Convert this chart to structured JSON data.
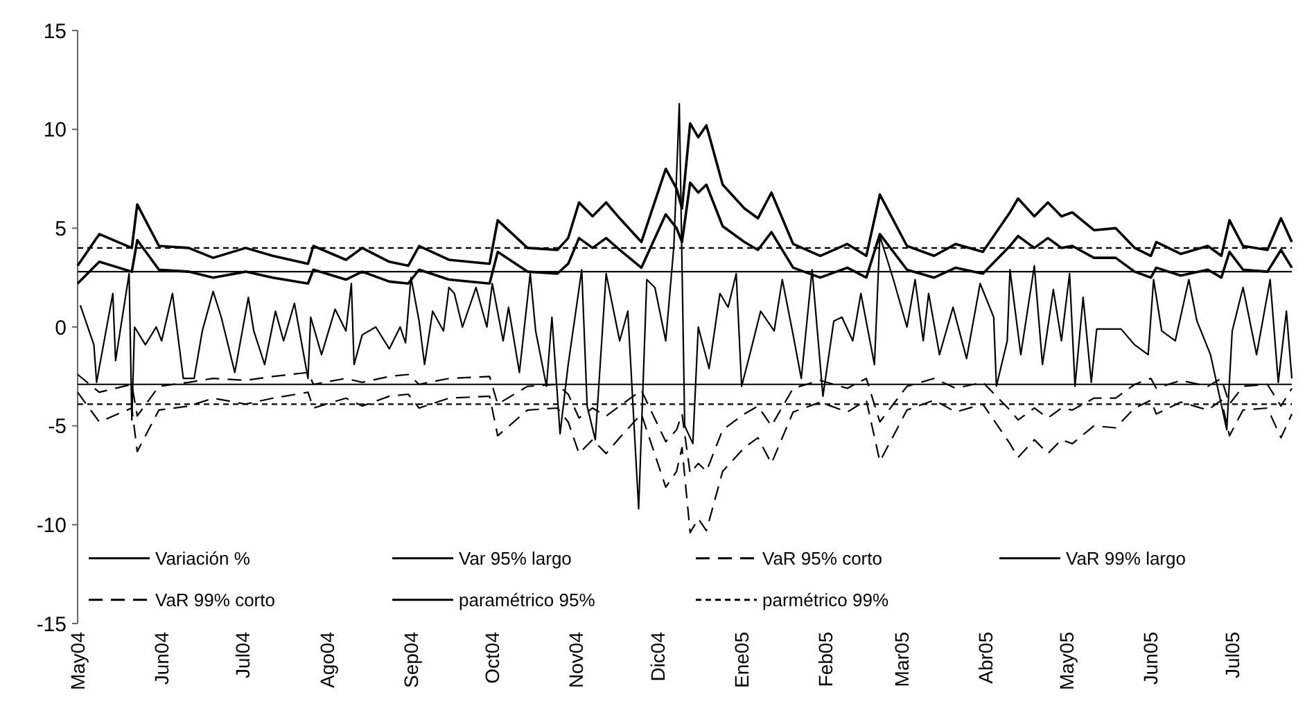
{
  "chart_data": {
    "type": "line",
    "x": [
      "2004-05-01",
      "2004-05-09",
      "2004-05-21",
      "2004-05-23",
      "2004-05-31",
      "2004-06-11",
      "2004-06-20",
      "2004-07-02",
      "2004-07-12",
      "2004-07-25",
      "2004-07-27",
      "2004-08-08",
      "2004-08-14",
      "2004-08-24",
      "2004-08-31",
      "2004-09-04",
      "2004-09-15",
      "2004-09-30",
      "2004-10-03",
      "2004-10-14",
      "2004-10-25",
      "2004-10-29",
      "2004-11-02",
      "2004-11-07",
      "2004-11-12",
      "2004-11-17",
      "2004-11-25",
      "2004-12-04",
      "2004-12-08",
      "2004-12-10",
      "2004-12-13",
      "2004-12-16",
      "2004-12-19",
      "2004-12-25",
      "2005-01-02",
      "2005-01-07",
      "2005-01-12",
      "2005-01-20",
      "2005-01-30",
      "2005-02-09",
      "2005-02-16",
      "2005-02-21",
      "2005-03-03",
      "2005-03-13",
      "2005-03-21",
      "2005-03-31",
      "2005-04-10",
      "2005-04-13",
      "2005-04-19",
      "2005-04-24",
      "2005-04-29",
      "2005-05-03",
      "2005-05-11",
      "2005-05-19",
      "2005-05-26",
      "2005-06-01",
      "2005-06-03",
      "2005-06-12",
      "2005-06-22",
      "2005-06-27",
      "2005-06-30",
      "2005-07-05",
      "2005-07-14",
      "2005-07-19",
      "2005-07-23"
    ],
    "series": [
      {
        "name": "Variación %",
        "color": "#000000",
        "line_style": "solid",
        "x": [
          "2004-05-02",
          "2004-05-07",
          "2004-05-08",
          "2004-05-14",
          "2004-05-15",
          "2004-05-20",
          "2004-05-21",
          "2004-05-22",
          "2004-05-26",
          "2004-05-30",
          "2004-06-01",
          "2004-06-05",
          "2004-06-09",
          "2004-06-13",
          "2004-06-16",
          "2004-06-20",
          "2004-06-23",
          "2004-06-28",
          "2004-07-03",
          "2004-07-05",
          "2004-07-09",
          "2004-07-13",
          "2004-07-16",
          "2004-07-20",
          "2004-07-25",
          "2004-07-26",
          "2004-07-30",
          "2004-08-04",
          "2004-08-08",
          "2004-08-10",
          "2004-08-11",
          "2004-08-14",
          "2004-08-19",
          "2004-08-24",
          "2004-08-28",
          "2004-08-30",
          "2004-09-01",
          "2004-09-04",
          "2004-09-06",
          "2004-09-09",
          "2004-09-13",
          "2004-09-15",
          "2004-09-17",
          "2004-09-20",
          "2004-09-25",
          "2004-09-29",
          "2004-10-01",
          "2004-10-05",
          "2004-10-07",
          "2004-10-11",
          "2004-10-15",
          "2004-10-17",
          "2004-10-21",
          "2004-10-23",
          "2004-10-26",
          "2004-10-29",
          "2004-11-03",
          "2004-11-05",
          "2004-11-08",
          "2004-11-12",
          "2004-11-17",
          "2004-11-20",
          "2004-11-24",
          "2004-11-27",
          "2004-11-30",
          "2004-12-04",
          "2004-12-07",
          "2004-12-09",
          "2004-12-11",
          "2004-12-14",
          "2004-12-16",
          "2004-12-20",
          "2004-12-24",
          "2004-12-27",
          "2004-12-30",
          "2005-01-01",
          "2005-01-04",
          "2005-01-08",
          "2005-01-13",
          "2005-01-16",
          "2005-01-20",
          "2005-01-23",
          "2005-01-27",
          "2005-01-31",
          "2005-02-04",
          "2005-02-07",
          "2005-02-11",
          "2005-02-14",
          "2005-02-19",
          "2005-02-21",
          "2005-02-26",
          "2005-03-03",
          "2005-03-06",
          "2005-03-09",
          "2005-03-11",
          "2005-03-15",
          "2005-03-20",
          "2005-03-25",
          "2005-03-30",
          "2005-04-04",
          "2005-04-05",
          "2005-04-09",
          "2005-04-10",
          "2005-04-14",
          "2005-04-19",
          "2005-04-22",
          "2005-04-26",
          "2005-04-29",
          "2005-05-02",
          "2005-05-04",
          "2005-05-07",
          "2005-05-10",
          "2005-05-12",
          "2005-05-21",
          "2005-05-26",
          "2005-05-31",
          "2005-06-02",
          "2005-06-05",
          "2005-06-10",
          "2005-06-15",
          "2005-06-18",
          "2005-06-23",
          "2005-06-29",
          "2005-07-01",
          "2005-07-05",
          "2005-07-10",
          "2005-07-15",
          "2005-07-18",
          "2005-07-21",
          "2005-07-23"
        ],
        "values": [
          1.1,
          -0.9,
          -2.8,
          1.7,
          -1.7,
          2.7,
          -4.7,
          0,
          -0.9,
          0,
          -0.7,
          1.7,
          -2.6,
          -2.6,
          -0.2,
          1.8,
          0.5,
          -2.3,
          1.5,
          -0.2,
          -1.9,
          0.8,
          -0.7,
          1.2,
          -2.6,
          0.5,
          -1.4,
          0.9,
          -0.2,
          2.2,
          -1.9,
          -0.4,
          0,
          -1.1,
          0,
          -0.8,
          2.5,
          0.3,
          -1.9,
          0.8,
          -0.2,
          2.0,
          1.7,
          0,
          2.0,
          0,
          2.2,
          -0.7,
          1.0,
          -2.3,
          2.7,
          -0.2,
          -3.0,
          0.5,
          -5.4,
          -1.9,
          2.9,
          -4.0,
          -5.7,
          2.7,
          -0.7,
          0.8,
          -9.2,
          2.4,
          2.0,
          -0.7,
          4.1,
          11.3,
          -5.0,
          -5.9,
          0,
          -2.1,
          1.7,
          1.0,
          2.7,
          -3.0,
          -1.4,
          0.8,
          -0.2,
          2.4,
          -0.4,
          -2.6,
          2.9,
          -3.5,
          0.3,
          0.5,
          -0.7,
          1.7,
          -1.9,
          4.6,
          2.4,
          0,
          2.4,
          -0.7,
          1.7,
          -1.4,
          1.0,
          -1.6,
          2.2,
          0.5,
          -3.0,
          -0.7,
          2.9,
          -1.4,
          3.1,
          -1.9,
          1.9,
          -0.7,
          2.7,
          -3.0,
          1.5,
          -2.8,
          -0.1,
          -0.1,
          -0.9,
          -1.4,
          2.4,
          -0.2,
          -0.7,
          2.4,
          0.3,
          -1.4,
          -5.2,
          -0.2,
          2.0,
          -1.4,
          2.4,
          -2.8,
          0.8,
          -2.6
        ]
      },
      {
        "name": "Var 95% largo",
        "color": "#000000",
        "line_style": "solid",
        "values": [
          2.2,
          3.3,
          2.8,
          4.4,
          2.9,
          2.8,
          2.5,
          2.8,
          2.5,
          2.2,
          2.9,
          2.4,
          2.8,
          2.3,
          2.2,
          2.9,
          2.4,
          2.2,
          3.8,
          2.8,
          2.7,
          3.2,
          4.5,
          4.0,
          4.5,
          3.9,
          3.0,
          5.7,
          5.0,
          4.3,
          7.3,
          6.8,
          7.2,
          5.1,
          4.3,
          3.9,
          4.8,
          3.0,
          2.5,
          3.0,
          2.5,
          4.7,
          2.9,
          2.5,
          3.0,
          2.7,
          4.1,
          4.6,
          4.0,
          4.5,
          4.0,
          4.1,
          3.5,
          3.5,
          2.8,
          2.5,
          3.0,
          2.6,
          2.9,
          2.5,
          3.8,
          2.9,
          2.8,
          3.9,
          3.0
        ]
      },
      {
        "name": "VaR 95% corto",
        "color": "#000000",
        "line_style": "dashed",
        "values": [
          -2.4,
          -3.3,
          -2.9,
          -4.5,
          -3.0,
          -2.8,
          -2.6,
          -2.7,
          -2.5,
          -2.3,
          -2.9,
          -2.6,
          -2.8,
          -2.5,
          -2.4,
          -2.9,
          -2.6,
          -2.5,
          -3.9,
          -3.0,
          -2.9,
          -3.4,
          -4.6,
          -4.1,
          -4.5,
          -4.0,
          -3.2,
          -5.8,
          -5.2,
          -4.4,
          -7.4,
          -6.9,
          -7.3,
          -5.2,
          -4.4,
          -4.0,
          -5.0,
          -3.1,
          -2.7,
          -3.1,
          -2.6,
          -4.8,
          -3.0,
          -2.6,
          -3.1,
          -2.8,
          -4.2,
          -4.7,
          -4.1,
          -4.6,
          -4.1,
          -4.2,
          -3.6,
          -3.6,
          -2.9,
          -2.6,
          -3.1,
          -2.7,
          -3.0,
          -2.6,
          -3.9,
          -3.0,
          -2.9,
          -4.0,
          -3.1
        ]
      },
      {
        "name": "VaR 99% largo",
        "color": "#000000",
        "line_style": "solid",
        "values": [
          3.1,
          4.7,
          4.0,
          6.2,
          4.1,
          4.0,
          3.5,
          4.0,
          3.6,
          3.2,
          4.1,
          3.4,
          4.0,
          3.3,
          3.1,
          4.1,
          3.4,
          3.2,
          5.4,
          4.0,
          3.9,
          4.5,
          6.3,
          5.6,
          6.3,
          5.5,
          4.3,
          8.0,
          7.0,
          6.0,
          10.3,
          9.6,
          10.2,
          7.2,
          6.0,
          5.5,
          6.8,
          4.2,
          3.6,
          4.2,
          3.6,
          6.7,
          4.1,
          3.6,
          4.2,
          3.8,
          5.8,
          6.5,
          5.6,
          6.3,
          5.6,
          5.8,
          4.9,
          5.0,
          4.0,
          3.6,
          4.3,
          3.7,
          4.1,
          3.6,
          5.4,
          4.1,
          3.9,
          5.5,
          4.3
        ]
      },
      {
        "name": "VaR 99% corto",
        "color": "#000000",
        "line_style": "dashed",
        "values": [
          -3.3,
          -4.8,
          -4.1,
          -6.3,
          -4.2,
          -4.0,
          -3.6,
          -3.9,
          -3.6,
          -3.3,
          -4.1,
          -3.6,
          -4.0,
          -3.5,
          -3.4,
          -4.1,
          -3.6,
          -3.5,
          -5.5,
          -4.2,
          -4.1,
          -4.8,
          -6.4,
          -5.7,
          -6.4,
          -5.6,
          -4.4,
          -8.1,
          -7.3,
          -6.1,
          -10.4,
          -9.7,
          -10.3,
          -7.3,
          -6.1,
          -5.6,
          -6.9,
          -4.3,
          -3.8,
          -4.3,
          -3.7,
          -6.8,
          -4.2,
          -3.7,
          -4.3,
          -3.9,
          -5.9,
          -6.6,
          -5.7,
          -6.4,
          -5.7,
          -5.9,
          -5.0,
          -5.1,
          -4.1,
          -3.7,
          -4.4,
          -3.8,
          -4.2,
          -3.7,
          -5.5,
          -4.2,
          -4.1,
          -5.6,
          -4.4
        ]
      },
      {
        "name": "paramétrico 95%",
        "color": "#000000",
        "line_style": "solid",
        "x": [
          "2004-05-01",
          "2005-07-23"
        ],
        "values": [
          2.8,
          2.8
        ]
      },
      {
        "name": "parmétrico 99%",
        "color": "#000000",
        "line_style": "dotted",
        "x": [
          "2004-05-01",
          "2005-07-23"
        ],
        "values": [
          4.0,
          4.0
        ]
      },
      {
        "color": "#000000",
        "line_style": "solid",
        "x": [
          "2004-05-01",
          "2005-07-23"
        ],
        "values": [
          -2.9,
          -2.9
        ]
      },
      {
        "color": "#000000",
        "line_style": "dotted",
        "x": [
          "2004-05-01",
          "2005-07-23"
        ],
        "values": [
          -3.9,
          -3.9
        ]
      }
    ],
    "xlim": [
      "2004-05-01",
      "2005-07-23"
    ],
    "xticks": [
      {
        "value": "2004-05-01",
        "label": "May04"
      },
      {
        "value": "2004-06-01",
        "label": "Jun04"
      },
      {
        "value": "2004-07-01",
        "label": "Jul04"
      },
      {
        "value": "2004-08-01",
        "label": "Ago04"
      },
      {
        "value": "2004-09-01",
        "label": "Sep04"
      },
      {
        "value": "2004-10-01",
        "label": "Oct04"
      },
      {
        "value": "2004-11-01",
        "label": "Nov04"
      },
      {
        "value": "2004-12-01",
        "label": "Dic04"
      },
      {
        "value": "2005-01-01",
        "label": "Ene05"
      },
      {
        "value": "2005-02-01",
        "label": "Feb05"
      },
      {
        "value": "2005-03-01",
        "label": "Mar05"
      },
      {
        "value": "2005-04-01",
        "label": "Abr05"
      },
      {
        "value": "2005-05-01",
        "label": "May05"
      },
      {
        "value": "2005-06-01",
        "label": "Jun05"
      },
      {
        "value": "2005-07-01",
        "label": "Jul05"
      }
    ],
    "ylim": [
      -15,
      15
    ],
    "yticks": [
      -15,
      -10,
      -5,
      0,
      5,
      10,
      15
    ],
    "grid": false,
    "legend": "bottom",
    "marker": "none"
  }
}
